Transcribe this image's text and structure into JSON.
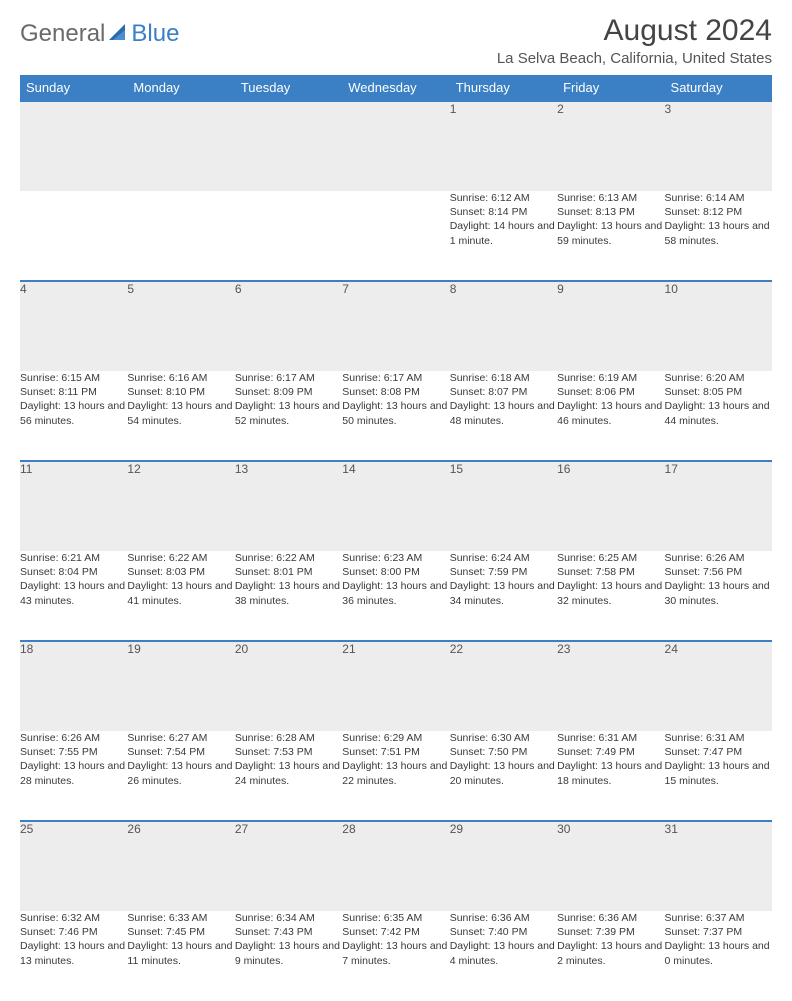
{
  "logo": {
    "text1": "General",
    "text2": "Blue"
  },
  "title": "August 2024",
  "location": "La Selva Beach, California, United States",
  "colors": {
    "header_bg": "#3b7fc4",
    "header_text": "#ffffff",
    "daynum_bg": "#ededed",
    "border": "#3b7fc4",
    "body_text": "#3a3a3a"
  },
  "dayNames": [
    "Sunday",
    "Monday",
    "Tuesday",
    "Wednesday",
    "Thursday",
    "Friday",
    "Saturday"
  ],
  "weeks": [
    [
      null,
      null,
      null,
      null,
      {
        "n": "1",
        "sr": "Sunrise: 6:12 AM",
        "ss": "Sunset: 8:14 PM",
        "dl": "Daylight: 14 hours and 1 minute."
      },
      {
        "n": "2",
        "sr": "Sunrise: 6:13 AM",
        "ss": "Sunset: 8:13 PM",
        "dl": "Daylight: 13 hours and 59 minutes."
      },
      {
        "n": "3",
        "sr": "Sunrise: 6:14 AM",
        "ss": "Sunset: 8:12 PM",
        "dl": "Daylight: 13 hours and 58 minutes."
      }
    ],
    [
      {
        "n": "4",
        "sr": "Sunrise: 6:15 AM",
        "ss": "Sunset: 8:11 PM",
        "dl": "Daylight: 13 hours and 56 minutes."
      },
      {
        "n": "5",
        "sr": "Sunrise: 6:16 AM",
        "ss": "Sunset: 8:10 PM",
        "dl": "Daylight: 13 hours and 54 minutes."
      },
      {
        "n": "6",
        "sr": "Sunrise: 6:17 AM",
        "ss": "Sunset: 8:09 PM",
        "dl": "Daylight: 13 hours and 52 minutes."
      },
      {
        "n": "7",
        "sr": "Sunrise: 6:17 AM",
        "ss": "Sunset: 8:08 PM",
        "dl": "Daylight: 13 hours and 50 minutes."
      },
      {
        "n": "8",
        "sr": "Sunrise: 6:18 AM",
        "ss": "Sunset: 8:07 PM",
        "dl": "Daylight: 13 hours and 48 minutes."
      },
      {
        "n": "9",
        "sr": "Sunrise: 6:19 AM",
        "ss": "Sunset: 8:06 PM",
        "dl": "Daylight: 13 hours and 46 minutes."
      },
      {
        "n": "10",
        "sr": "Sunrise: 6:20 AM",
        "ss": "Sunset: 8:05 PM",
        "dl": "Daylight: 13 hours and 44 minutes."
      }
    ],
    [
      {
        "n": "11",
        "sr": "Sunrise: 6:21 AM",
        "ss": "Sunset: 8:04 PM",
        "dl": "Daylight: 13 hours and 43 minutes."
      },
      {
        "n": "12",
        "sr": "Sunrise: 6:22 AM",
        "ss": "Sunset: 8:03 PM",
        "dl": "Daylight: 13 hours and 41 minutes."
      },
      {
        "n": "13",
        "sr": "Sunrise: 6:22 AM",
        "ss": "Sunset: 8:01 PM",
        "dl": "Daylight: 13 hours and 38 minutes."
      },
      {
        "n": "14",
        "sr": "Sunrise: 6:23 AM",
        "ss": "Sunset: 8:00 PM",
        "dl": "Daylight: 13 hours and 36 minutes."
      },
      {
        "n": "15",
        "sr": "Sunrise: 6:24 AM",
        "ss": "Sunset: 7:59 PM",
        "dl": "Daylight: 13 hours and 34 minutes."
      },
      {
        "n": "16",
        "sr": "Sunrise: 6:25 AM",
        "ss": "Sunset: 7:58 PM",
        "dl": "Daylight: 13 hours and 32 minutes."
      },
      {
        "n": "17",
        "sr": "Sunrise: 6:26 AM",
        "ss": "Sunset: 7:56 PM",
        "dl": "Daylight: 13 hours and 30 minutes."
      }
    ],
    [
      {
        "n": "18",
        "sr": "Sunrise: 6:26 AM",
        "ss": "Sunset: 7:55 PM",
        "dl": "Daylight: 13 hours and 28 minutes."
      },
      {
        "n": "19",
        "sr": "Sunrise: 6:27 AM",
        "ss": "Sunset: 7:54 PM",
        "dl": "Daylight: 13 hours and 26 minutes."
      },
      {
        "n": "20",
        "sr": "Sunrise: 6:28 AM",
        "ss": "Sunset: 7:53 PM",
        "dl": "Daylight: 13 hours and 24 minutes."
      },
      {
        "n": "21",
        "sr": "Sunrise: 6:29 AM",
        "ss": "Sunset: 7:51 PM",
        "dl": "Daylight: 13 hours and 22 minutes."
      },
      {
        "n": "22",
        "sr": "Sunrise: 6:30 AM",
        "ss": "Sunset: 7:50 PM",
        "dl": "Daylight: 13 hours and 20 minutes."
      },
      {
        "n": "23",
        "sr": "Sunrise: 6:31 AM",
        "ss": "Sunset: 7:49 PM",
        "dl": "Daylight: 13 hours and 18 minutes."
      },
      {
        "n": "24",
        "sr": "Sunrise: 6:31 AM",
        "ss": "Sunset: 7:47 PM",
        "dl": "Daylight: 13 hours and 15 minutes."
      }
    ],
    [
      {
        "n": "25",
        "sr": "Sunrise: 6:32 AM",
        "ss": "Sunset: 7:46 PM",
        "dl": "Daylight: 13 hours and 13 minutes."
      },
      {
        "n": "26",
        "sr": "Sunrise: 6:33 AM",
        "ss": "Sunset: 7:45 PM",
        "dl": "Daylight: 13 hours and 11 minutes."
      },
      {
        "n": "27",
        "sr": "Sunrise: 6:34 AM",
        "ss": "Sunset: 7:43 PM",
        "dl": "Daylight: 13 hours and 9 minutes."
      },
      {
        "n": "28",
        "sr": "Sunrise: 6:35 AM",
        "ss": "Sunset: 7:42 PM",
        "dl": "Daylight: 13 hours and 7 minutes."
      },
      {
        "n": "29",
        "sr": "Sunrise: 6:36 AM",
        "ss": "Sunset: 7:40 PM",
        "dl": "Daylight: 13 hours and 4 minutes."
      },
      {
        "n": "30",
        "sr": "Sunrise: 6:36 AM",
        "ss": "Sunset: 7:39 PM",
        "dl": "Daylight: 13 hours and 2 minutes."
      },
      {
        "n": "31",
        "sr": "Sunrise: 6:37 AM",
        "ss": "Sunset: 7:37 PM",
        "dl": "Daylight: 13 hours and 0 minutes."
      }
    ]
  ]
}
